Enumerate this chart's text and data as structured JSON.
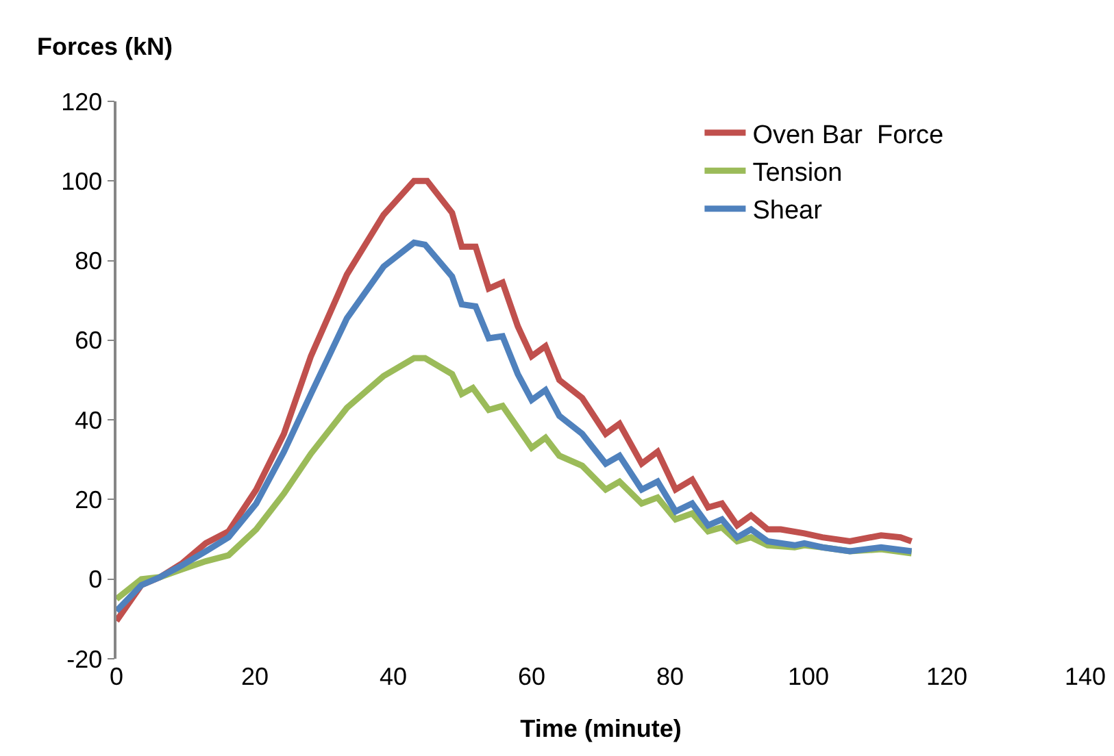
{
  "chart_data": {
    "type": "line",
    "xlabel": "Time (minute)",
    "ylabel": "Forces (kN)",
    "xlim": [
      0,
      140
    ],
    "xticks": [
      0,
      20,
      40,
      60,
      80,
      100,
      120,
      140
    ],
    "ylim": [
      -20,
      120
    ],
    "yticks": [
      -20,
      0,
      20,
      40,
      60,
      80,
      100,
      120
    ],
    "grid": false,
    "legend": "top right",
    "marker": "none",
    "line_style": "solid",
    "series": [
      {
        "name": "Oven Bar  Force",
        "color": "#c0504d",
        "x": [
          0,
          3.6,
          6.3,
          9.5,
          12.9,
          16.2,
          20.2,
          24.2,
          28.1,
          33.3,
          38.6,
          43,
          44.9,
          48.5,
          49.9,
          51.9,
          53.8,
          55.8,
          58,
          60,
          62,
          64,
          67.3,
          70.7,
          72.7,
          75.9,
          78.2,
          80.8,
          83.2,
          85.5,
          87.5,
          89.7,
          91.7,
          94.1,
          96,
          99.4,
          102,
          106,
          110.5,
          113.3,
          114.9
        ],
        "values": [
          -10.5,
          -1.5,
          0.5,
          4,
          9,
          12,
          22.5,
          36.5,
          56,
          76.5,
          91.5,
          100,
          100,
          92,
          83.5,
          83.5,
          73,
          74.5,
          63.5,
          56,
          58.5,
          50,
          45.5,
          36.5,
          39,
          29,
          32,
          22.5,
          25,
          18,
          19,
          13.5,
          16,
          12.5,
          12.5,
          11.5,
          10.5,
          9.5,
          11,
          10.5,
          9.5
        ]
      },
      {
        "name": "Tension",
        "color": "#9bbb59",
        "x": [
          0,
          3.6,
          6.3,
          9.5,
          12.9,
          16.2,
          20.2,
          24.2,
          28.1,
          33.3,
          38.6,
          43,
          44.6,
          48.5,
          49.9,
          51.5,
          53.8,
          55.8,
          58,
          60,
          62,
          64,
          67.3,
          70.7,
          72.7,
          75.9,
          78.2,
          80.8,
          83.2,
          85.5,
          87.5,
          89.7,
          91.7,
          94.1,
          98,
          99.4,
          102,
          106,
          110.5,
          114.9
        ],
        "values": [
          -5,
          0,
          0.5,
          2.5,
          4.5,
          6,
          12.5,
          21.5,
          31.5,
          43,
          51,
          55.5,
          55.5,
          51.5,
          46.5,
          48,
          42.5,
          43.5,
          38,
          33,
          35.5,
          31,
          28.5,
          22.5,
          24.5,
          19,
          20.5,
          15,
          16.5,
          12,
          13,
          9.5,
          10.5,
          8.5,
          8,
          8.5,
          8,
          7,
          7.5,
          6.5
        ]
      },
      {
        "name": "Shear",
        "color": "#4f81bd",
        "x": [
          0,
          3.6,
          6.3,
          9.5,
          12.9,
          16.2,
          20.2,
          24.2,
          28.1,
          33.3,
          38.6,
          43,
          44.6,
          48.5,
          49.9,
          51.9,
          53.8,
          55.8,
          58,
          60,
          62,
          64,
          67.3,
          70.7,
          72.7,
          75.9,
          78.2,
          80.8,
          83.2,
          85.5,
          87.5,
          89.7,
          91.7,
          94.1,
          98,
          99.4,
          102,
          106,
          110.5,
          114.9
        ],
        "values": [
          -8,
          -1.5,
          0.5,
          3.5,
          7,
          10.5,
          19,
          32,
          46.5,
          65.5,
          78.5,
          84.5,
          84,
          76,
          69,
          68.5,
          60.5,
          61,
          51.5,
          45,
          47.5,
          41,
          36.5,
          29,
          31,
          22.5,
          24.5,
          17,
          19,
          13.5,
          15,
          10.5,
          12.5,
          9.5,
          8.5,
          9,
          8,
          7,
          8,
          7
        ]
      }
    ]
  }
}
